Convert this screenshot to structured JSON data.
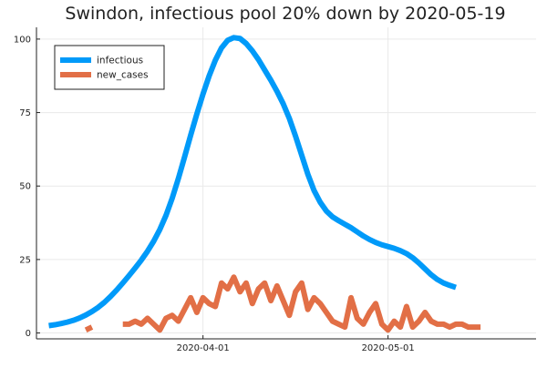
{
  "chart_data": {
    "type": "line",
    "title": "Swindon, infectious pool 20% down by 2020-05-19",
    "xlabel": "",
    "ylabel": "",
    "x_start": "2020-03-07",
    "x_range": [
      "2020-03-05",
      "2020-05-25"
    ],
    "ylim": [
      -2,
      104
    ],
    "xticks": [
      {
        "date": "2020-04-01",
        "label": "2020-04-01"
      },
      {
        "date": "2020-05-01",
        "label": "2020-05-01"
      }
    ],
    "yticks": [
      0,
      25,
      50,
      75,
      100
    ],
    "grid": true,
    "legend_position": "top-left",
    "series": [
      {
        "name": "infectious",
        "color": "#009af9",
        "values": [
          2.5,
          2.8,
          3.2,
          3.7,
          4.3,
          5.1,
          6.1,
          7.3,
          8.7,
          10.4,
          12.4,
          14.6,
          17.0,
          19.5,
          22.1,
          24.8,
          27.8,
          31.2,
          35.2,
          40.0,
          45.8,
          52.5,
          59.8,
          67.3,
          74.5,
          81.3,
          87.5,
          92.8,
          97.0,
          99.6,
          100.5,
          100.2,
          98.5,
          96.0,
          93.0,
          89.5,
          86.0,
          82.2,
          78.0,
          73.0,
          67.0,
          60.5,
          54.0,
          48.5,
          44.5,
          41.5,
          39.5,
          38.2,
          37.0,
          35.8,
          34.4,
          33.0,
          31.8,
          30.8,
          30.0,
          29.4,
          28.8,
          28.0,
          27.0,
          25.6,
          23.8,
          21.8,
          19.8,
          18.2,
          17.0,
          16.2,
          15.5
        ]
      },
      {
        "name": "new_cases",
        "color": "#e26f46",
        "values": [
          null,
          null,
          null,
          null,
          null,
          null,
          1,
          2,
          null,
          null,
          null,
          null,
          3,
          3,
          4,
          3,
          5,
          3,
          1,
          5,
          6,
          4,
          8,
          12,
          7,
          12,
          10,
          9,
          17,
          15,
          19,
          14,
          17,
          10,
          15,
          17,
          11,
          16,
          11,
          6,
          14,
          17,
          8,
          12,
          10,
          7,
          4,
          3,
          2,
          12,
          5,
          3,
          7,
          10,
          3,
          1,
          4,
          2,
          9,
          2,
          4,
          7,
          4,
          3,
          3,
          2,
          3,
          3,
          2,
          2,
          2
        ]
      }
    ]
  }
}
